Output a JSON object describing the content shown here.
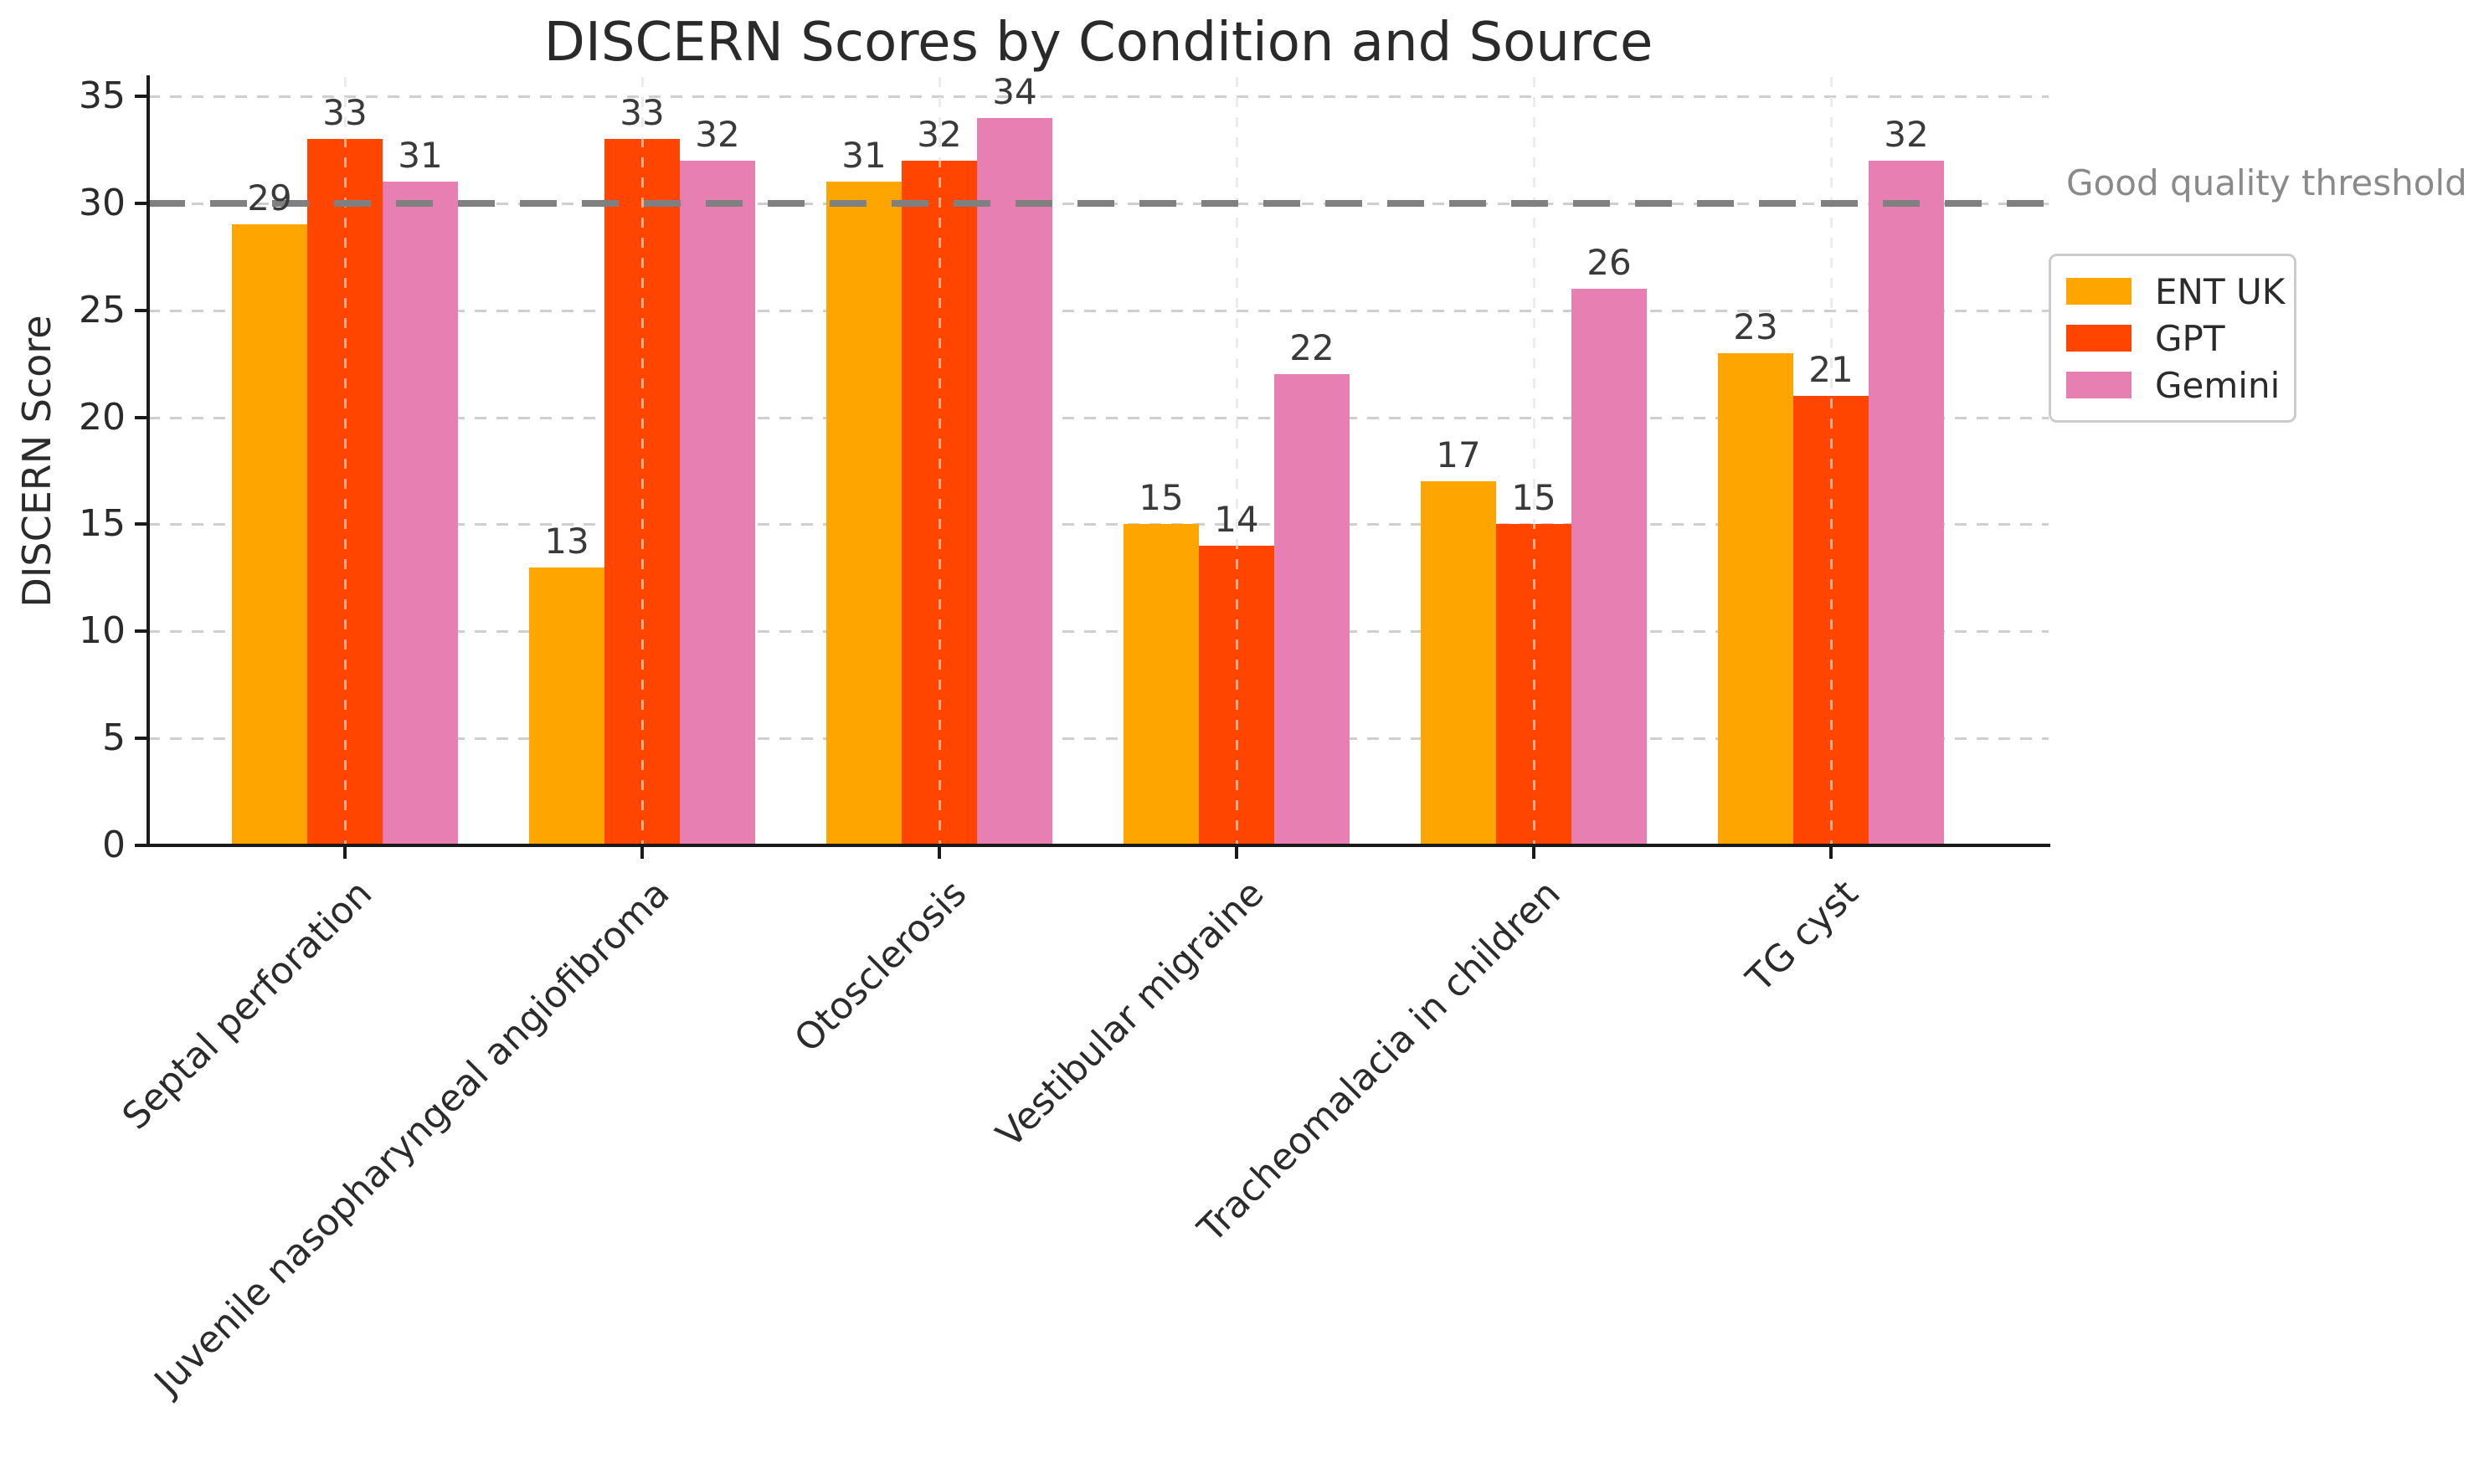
{
  "title": "DISCERN Scores by Condition and Source",
  "y_axis": {
    "label": "DISCERN Score",
    "ticks": [
      0,
      5,
      10,
      15,
      20,
      25,
      30,
      35
    ]
  },
  "threshold": {
    "value": 30,
    "label": "Good quality threshold",
    "line_color": "#808080",
    "text_color": "#8a8a8a"
  },
  "legend": {
    "entries": [
      "ENT UK",
      "GPT",
      "Gemini"
    ]
  },
  "colors": {
    "ent_uk": "#FFA500",
    "gpt": "#FF4500",
    "gemini": "#E77FB3",
    "axis": "#1a1a1a",
    "text": "#2b2b2b",
    "value_label": "#3a3a3a",
    "grid": "#cfcfcf"
  },
  "chart_data": {
    "type": "bar",
    "title": "DISCERN Scores by Condition and Source",
    "xlabel": "",
    "ylabel": "DISCERN Score",
    "ylim": [
      0,
      35.9
    ],
    "y_ticks": [
      0,
      5,
      10,
      15,
      20,
      25,
      30,
      35
    ],
    "grid": true,
    "legend_position": "right",
    "categories": [
      "Septal perforation",
      "Juvenile nasopharyngeal angiofibroma",
      "Otosclerosis",
      "Vestibular migraine",
      "Tracheomalacia in children",
      "TG cyst"
    ],
    "series": [
      {
        "name": "ENT UK",
        "color": "#FFA500",
        "values": [
          29,
          13,
          31,
          15,
          17,
          23
        ]
      },
      {
        "name": "GPT",
        "color": "#FF4500",
        "values": [
          33,
          33,
          32,
          14,
          15,
          21
        ]
      },
      {
        "name": "Gemini",
        "color": "#E77FB3",
        "values": [
          31,
          32,
          34,
          22,
          26,
          32
        ]
      }
    ],
    "threshold_line": {
      "y": 30,
      "label": "Good quality threshold",
      "style": "dashed",
      "color": "#808080"
    }
  }
}
